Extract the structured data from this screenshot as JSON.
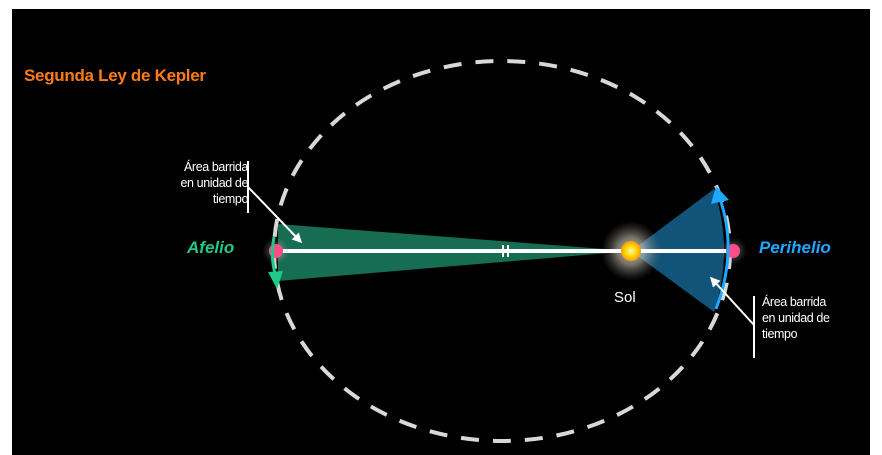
{
  "diagram": {
    "title": "Segunda Ley de Kepler",
    "label_aphelion": "Afelio",
    "label_perihelion": "Perihelio",
    "label_sun": "Sol",
    "annotation_left": [
      "Área barrida",
      "en unidad de",
      "tiempo"
    ],
    "annotation_right": [
      "Área barrida",
      "en unidad de",
      "tiempo"
    ],
    "colors": {
      "background": "#000000",
      "title": "#ff7b17",
      "aphelion_sector": "#1fc98a",
      "perihelion_sector": "#1fa8ff",
      "planet": "#ff4d8a",
      "sun": "#ffcc00",
      "orbit": "#d8d8d8"
    }
  }
}
